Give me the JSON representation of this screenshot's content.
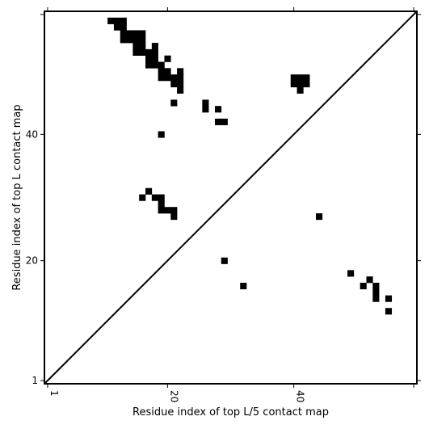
{
  "chart_data": {
    "type": "heatmap",
    "title": "",
    "xlabel": "Residue index of top L/5 contact map",
    "ylabel": "Residue index of top L contact map",
    "xlim": [
      0.5,
      59.5
    ],
    "ylim": [
      0.5,
      59.5
    ],
    "x_ticks": [
      1,
      20,
      40
    ],
    "y_ticks": [
      1,
      20,
      40
    ],
    "extra_tick_marks": [
      59
    ],
    "cell_color": "#000000",
    "diagonal_color": "#000000",
    "cells_upper": [
      [
        11,
        58
      ],
      [
        12,
        58
      ],
      [
        13,
        58
      ],
      [
        12,
        57
      ],
      [
        13,
        57
      ],
      [
        13,
        56
      ],
      [
        14,
        56
      ],
      [
        15,
        56
      ],
      [
        16,
        56
      ],
      [
        13,
        55
      ],
      [
        14,
        55
      ],
      [
        15,
        55
      ],
      [
        16,
        55
      ],
      [
        15,
        54
      ],
      [
        16,
        54
      ],
      [
        18,
        54
      ],
      [
        15,
        53
      ],
      [
        16,
        53
      ],
      [
        17,
        53
      ],
      [
        18,
        53
      ],
      [
        17,
        52
      ],
      [
        18,
        52
      ],
      [
        20,
        52
      ],
      [
        17,
        51
      ],
      [
        18,
        51
      ],
      [
        19,
        51
      ],
      [
        19,
        50
      ],
      [
        20,
        50
      ],
      [
        22,
        50
      ],
      [
        19,
        49
      ],
      [
        20,
        49
      ],
      [
        21,
        49
      ],
      [
        22,
        49
      ],
      [
        21,
        48
      ],
      [
        22,
        48
      ],
      [
        22,
        47
      ],
      [
        21,
        45
      ],
      [
        26,
        45
      ],
      [
        26,
        44
      ],
      [
        28,
        44
      ],
      [
        28,
        42
      ],
      [
        29,
        42
      ],
      [
        19,
        40
      ],
      [
        40,
        49
      ],
      [
        41,
        49
      ],
      [
        42,
        49
      ],
      [
        40,
        48
      ],
      [
        41,
        48
      ],
      [
        42,
        48
      ],
      [
        41,
        47
      ]
    ],
    "cells_lower": [
      [
        17,
        31
      ],
      [
        16,
        30
      ],
      [
        18,
        30
      ],
      [
        19,
        30
      ],
      [
        19,
        29
      ],
      [
        19,
        28
      ],
      [
        20,
        28
      ],
      [
        21,
        28
      ],
      [
        21,
        27
      ],
      [
        44,
        27
      ],
      [
        29,
        20
      ],
      [
        32,
        16
      ],
      [
        49,
        18
      ],
      [
        52,
        17
      ],
      [
        51,
        16
      ],
      [
        53,
        16
      ],
      [
        53,
        15
      ],
      [
        53,
        14
      ],
      [
        55,
        14
      ],
      [
        55,
        12
      ]
    ]
  }
}
